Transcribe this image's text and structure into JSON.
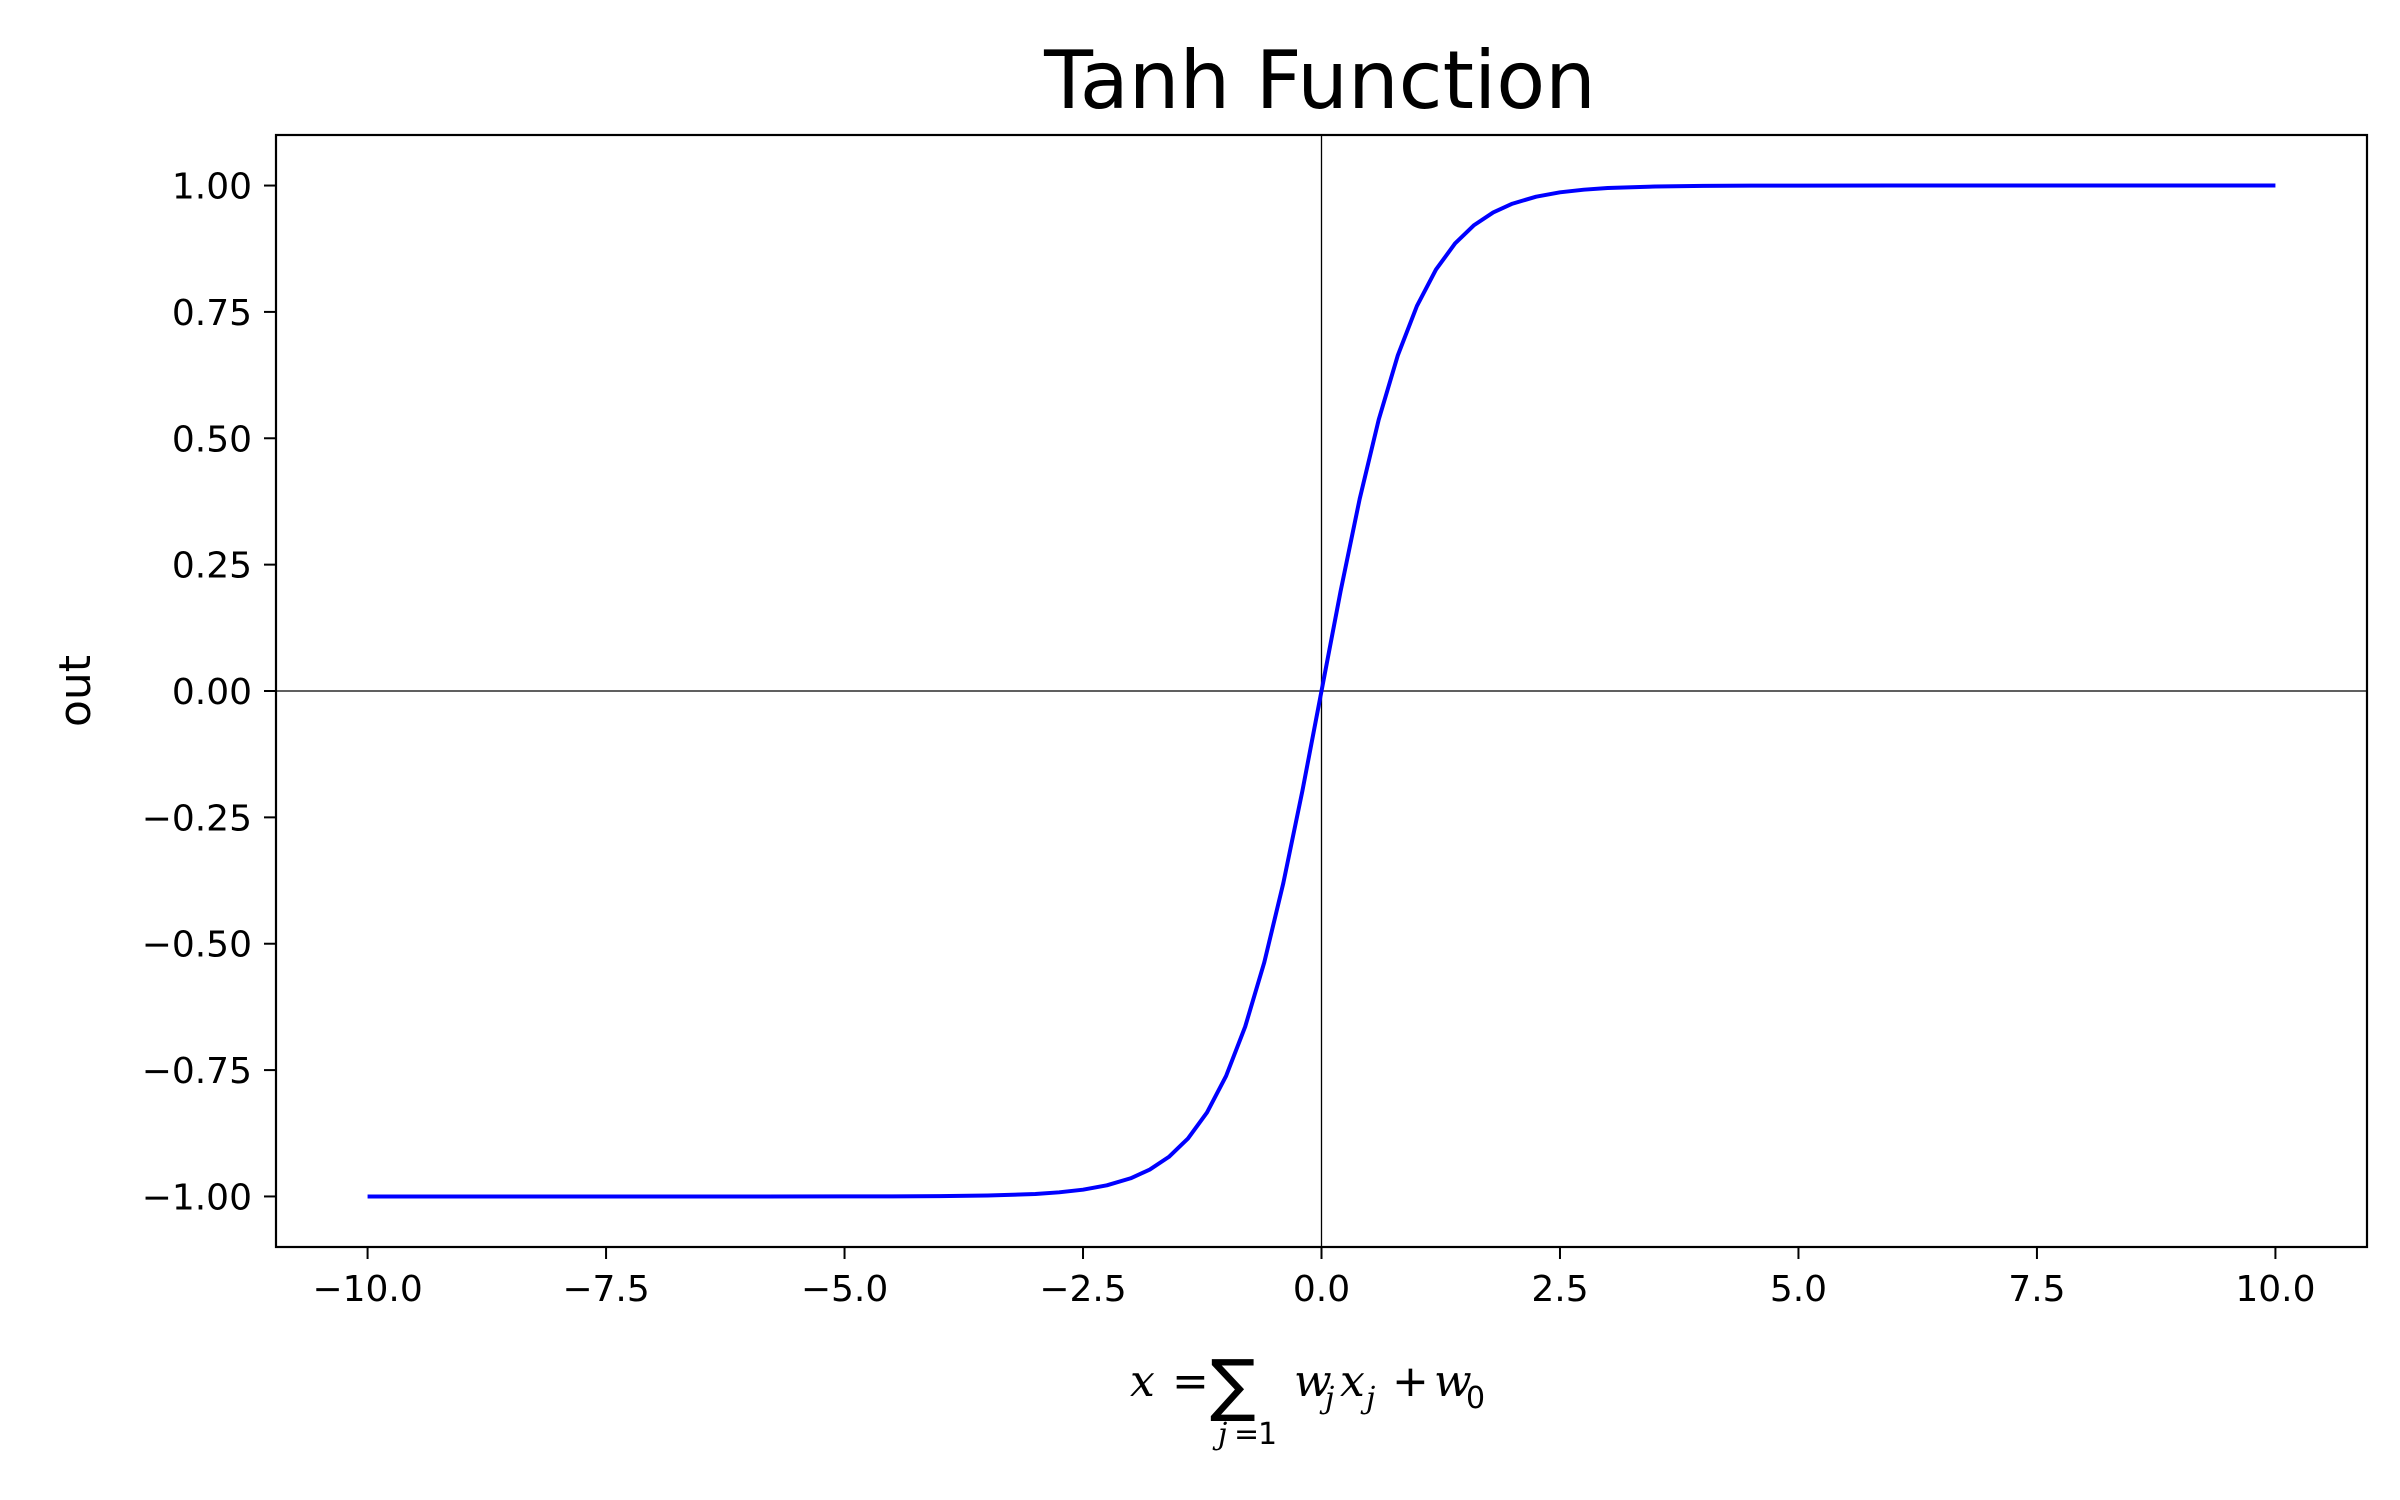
{
  "chart_data": {
    "type": "line",
    "title": "Tanh Function",
    "xlabel": {
      "lhs": "x",
      "eq": "=",
      "sigma": "∑",
      "sub_index": "j",
      "sub_eq": "=",
      "sub_start": "1",
      "w": "w",
      "w_sub": "j",
      "x": "x",
      "x_sub": "j",
      "plus": "+",
      "w0": "w",
      "w0_sub": "0"
    },
    "ylabel": "out",
    "xlim": [
      -10.96,
      10.96
    ],
    "ylim": [
      -1.1,
      1.1
    ],
    "x_ticks": [
      -10.0,
      -7.5,
      -5.0,
      -2.5,
      0.0,
      2.5,
      5.0,
      7.5,
      10.0
    ],
    "x_tick_labels": [
      "−10.0",
      "−7.5",
      "−5.0",
      "−2.5",
      "0.0",
      "2.5",
      "5.0",
      "7.5",
      "10.0"
    ],
    "y_ticks": [
      1.0,
      0.75,
      0.5,
      0.25,
      0.0,
      -0.25,
      -0.5,
      -0.75,
      -1.0
    ],
    "y_tick_labels": [
      "1.00",
      "0.75",
      "0.50",
      "0.25",
      "0.00",
      "−0.25",
      "−0.50",
      "−0.75",
      "−1.00"
    ],
    "grid": false,
    "reference_lines": [
      {
        "orientation": "horizontal",
        "value": 0
      },
      {
        "orientation": "vertical",
        "value": 0
      }
    ],
    "series": [
      {
        "color": "#0000ff",
        "x": [
          -10.0,
          -9.0,
          -8.0,
          -7.0,
          -6.0,
          -5.0,
          -4.5,
          -4.0,
          -3.5,
          -3.0,
          -2.75,
          -2.5,
          -2.25,
          -2.0,
          -1.8,
          -1.6,
          -1.4,
          -1.2,
          -1.0,
          -0.8,
          -0.6,
          -0.4,
          -0.2,
          0.0,
          0.2,
          0.4,
          0.6,
          0.8,
          1.0,
          1.2,
          1.4,
          1.6,
          1.8,
          2.0,
          2.25,
          2.5,
          2.75,
          3.0,
          3.5,
          4.0,
          4.5,
          5.0,
          6.0,
          7.0,
          8.0,
          9.0,
          10.0
        ],
        "y": [
          -1.0,
          -1.0,
          -1.0,
          -1.0,
          -1.0,
          -0.9999,
          -0.9998,
          -0.9993,
          -0.9982,
          -0.9951,
          -0.9918,
          -0.9866,
          -0.978,
          -0.964,
          -0.9468,
          -0.9217,
          -0.8854,
          -0.8337,
          -0.7616,
          -0.664,
          -0.537,
          -0.3799,
          -0.1974,
          0.0,
          0.1974,
          0.3799,
          0.537,
          0.664,
          0.7616,
          0.8337,
          0.8854,
          0.9217,
          0.9468,
          0.964,
          0.978,
          0.9866,
          0.9918,
          0.9951,
          0.9982,
          0.9993,
          0.9998,
          0.9999,
          1.0,
          1.0,
          1.0,
          1.0,
          1.0
        ]
      }
    ]
  }
}
